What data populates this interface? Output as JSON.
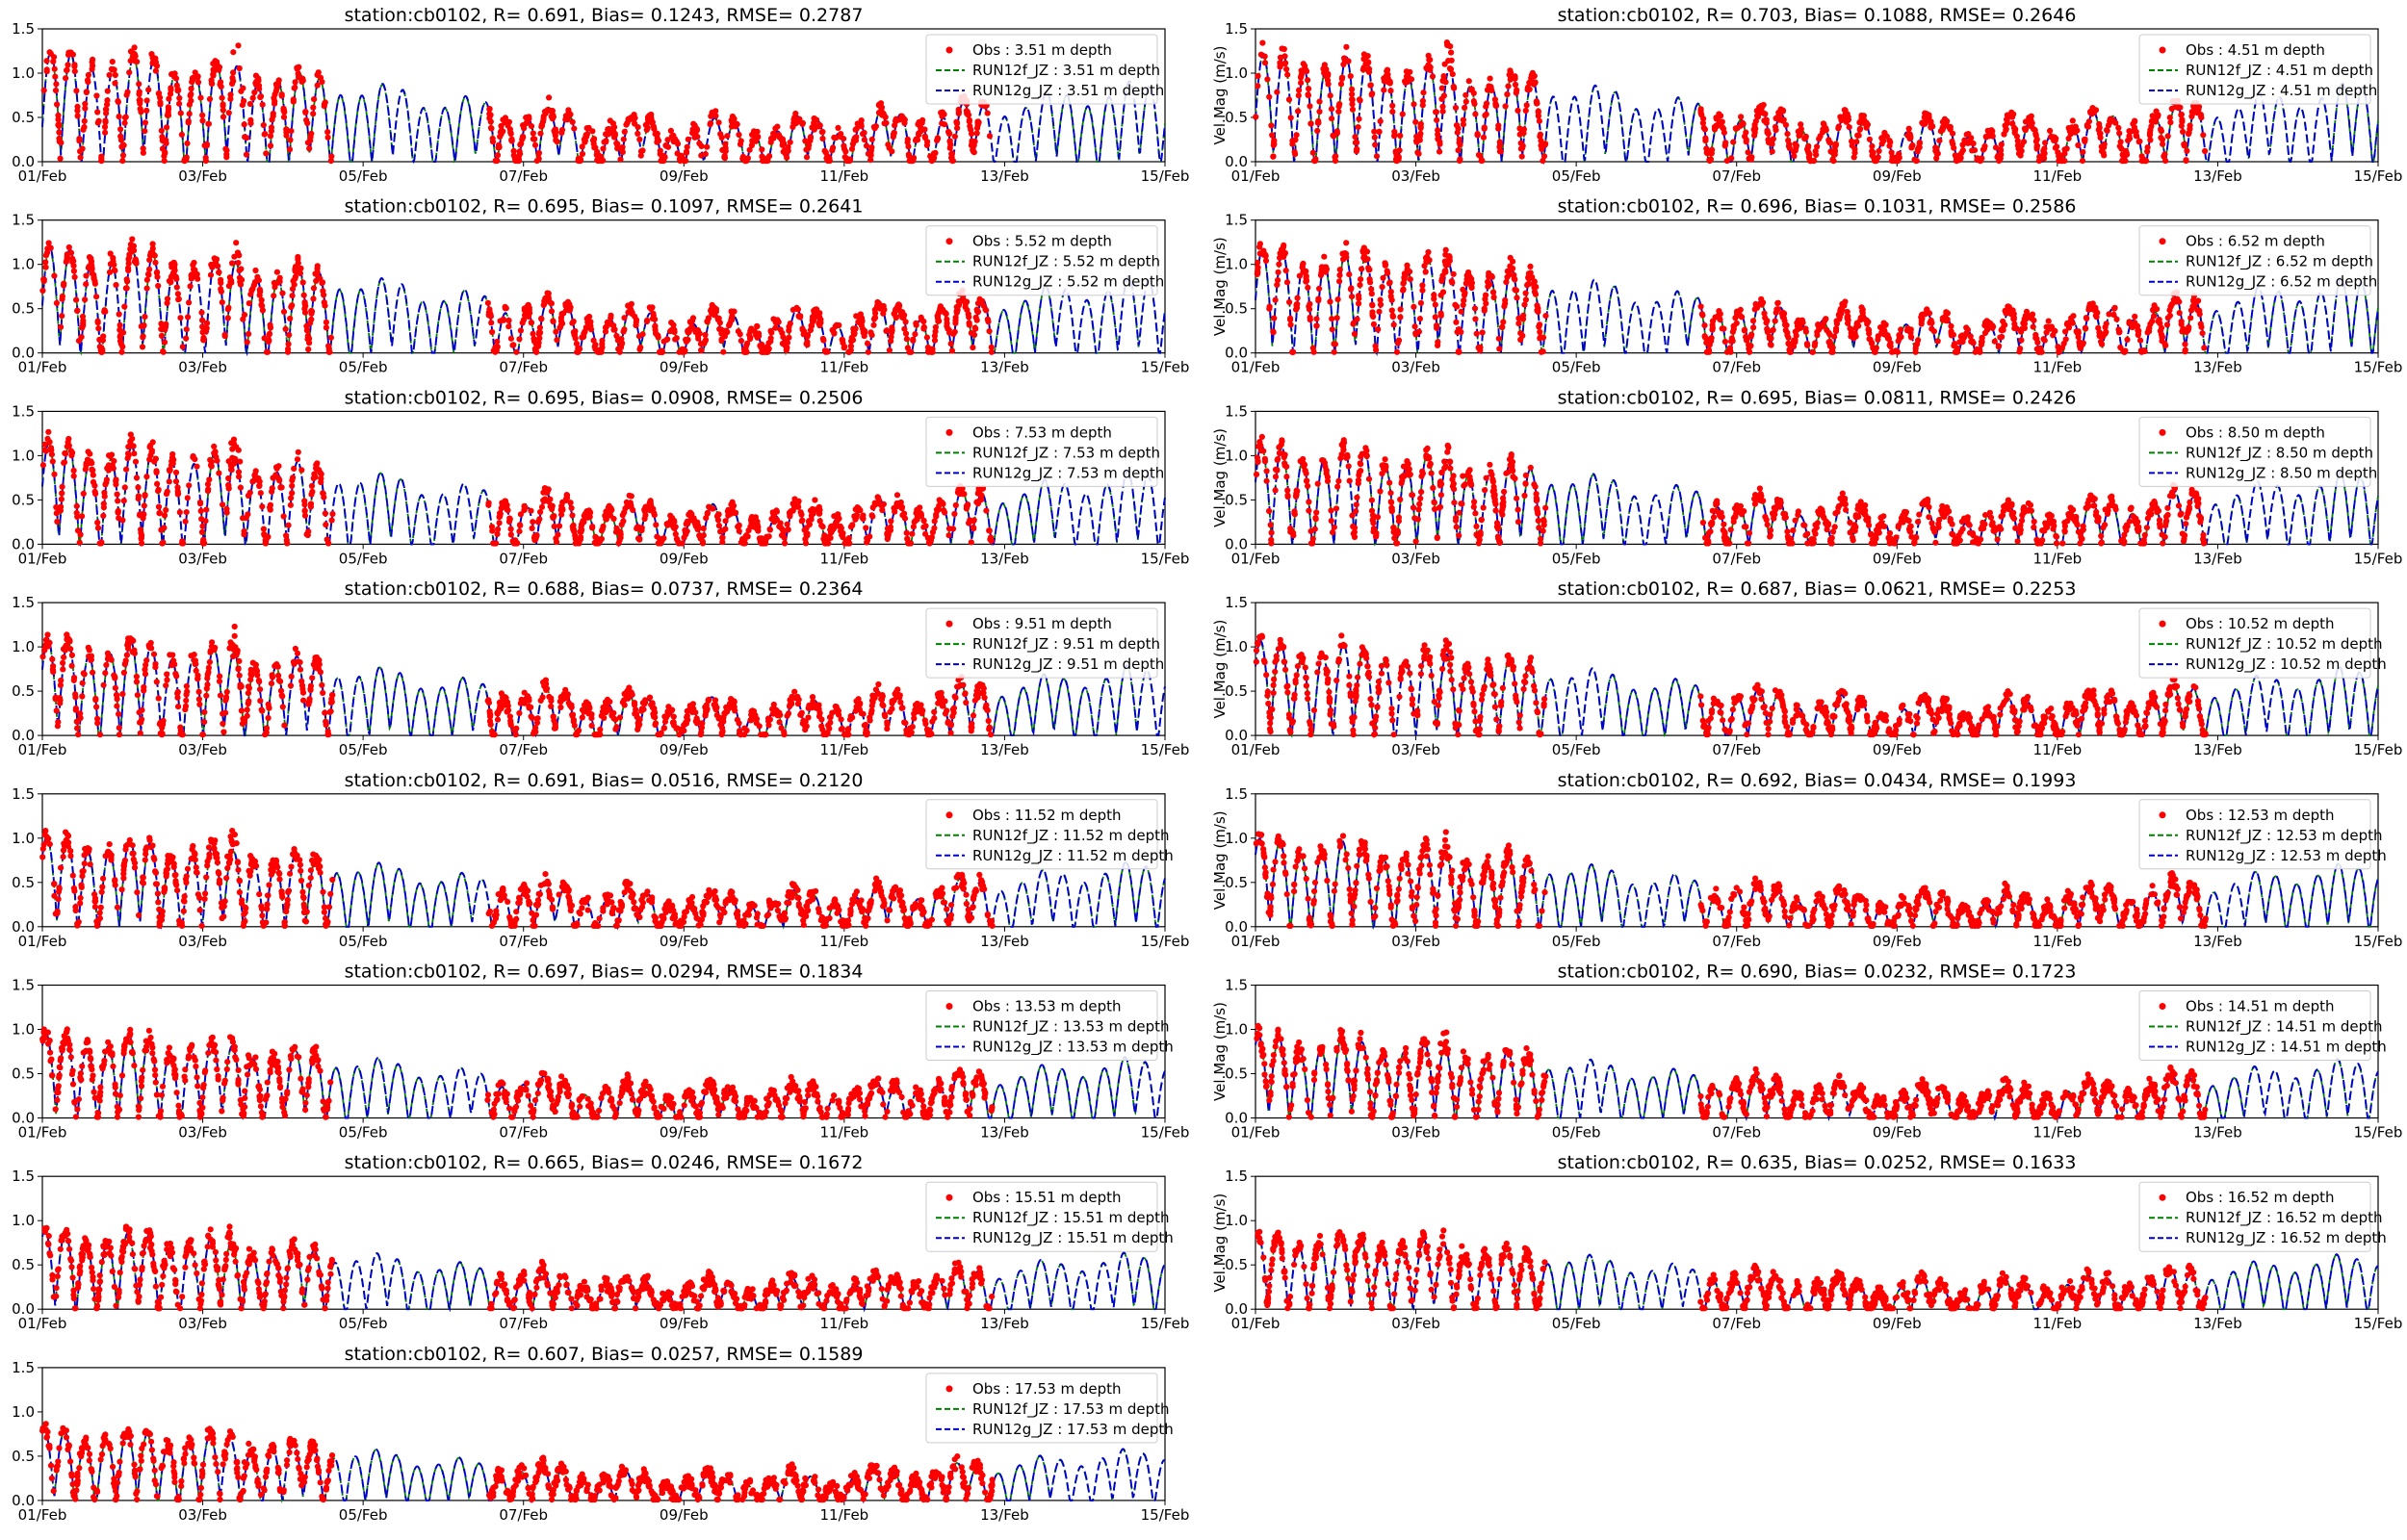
{
  "figure": {
    "background": "#ffffff"
  },
  "style": {
    "obs_color": "#ff0000",
    "run12f_color": "#008000",
    "run12g_color": "#0000cc",
    "run12g_dash": "dashed",
    "run12f_dash": "dashed"
  },
  "chart_data": [
    {
      "type": "line",
      "title": "station:cb0102, R= 0.691, Bias= 0.1243, RMSE= 0.2787",
      "ylabel": "",
      "xticks": [
        "01/Feb",
        "03/Feb",
        "05/Feb",
        "07/Feb",
        "09/Feb",
        "11/Feb",
        "13/Feb",
        "15/Feb"
      ],
      "yticks": [
        "0.0",
        "0.5",
        "1.0",
        "1.5"
      ],
      "ylim": [
        0,
        1.5
      ],
      "depth": 3.51,
      "amp": 1.0,
      "series": [
        {
          "name": "Obs : 3.51 m depth",
          "kind": "points"
        },
        {
          "name": "RUN12f_JZ : 3.51 m depth",
          "kind": "dashed"
        },
        {
          "name": "RUN12g_JZ : 3.51 m depth",
          "kind": "dashed"
        }
      ],
      "legend": "upper right"
    },
    {
      "type": "line",
      "title": "station:cb0102, R= 0.703, Bias= 0.1088, RMSE= 0.2646",
      "ylabel": "Vel.Mag (m/s)",
      "xticks": [
        "01/Feb",
        "03/Feb",
        "05/Feb",
        "07/Feb",
        "09/Feb",
        "11/Feb",
        "13/Feb",
        "15/Feb"
      ],
      "yticks": [
        "0.0",
        "0.5",
        "1.0",
        "1.5"
      ],
      "ylim": [
        0,
        1.5
      ],
      "depth": 4.51,
      "amp": 0.98,
      "series": [
        {
          "name": "Obs : 4.51 m depth",
          "kind": "points"
        },
        {
          "name": "RUN12f_JZ : 4.51 m depth",
          "kind": "dashed"
        },
        {
          "name": "RUN12g_JZ : 4.51 m depth",
          "kind": "dashed"
        }
      ],
      "legend": "upper right"
    },
    {
      "type": "line",
      "title": "station:cb0102, R= 0.695, Bias= 0.1097, RMSE= 0.2641",
      "ylabel": "",
      "xticks": [
        "01/Feb",
        "03/Feb",
        "05/Feb",
        "07/Feb",
        "09/Feb",
        "11/Feb",
        "13/Feb",
        "15/Feb"
      ],
      "yticks": [
        "0.0",
        "0.5",
        "1.0",
        "1.5"
      ],
      "ylim": [
        0,
        1.5
      ],
      "depth": 5.52,
      "amp": 0.96,
      "series": [
        {
          "name": "Obs : 5.52 m depth",
          "kind": "points"
        },
        {
          "name": "RUN12f_JZ : 5.52 m depth",
          "kind": "dashed"
        },
        {
          "name": "RUN12g_JZ : 5.52 m depth",
          "kind": "dashed"
        }
      ],
      "legend": "upper right"
    },
    {
      "type": "line",
      "title": "station:cb0102, R= 0.696, Bias= 0.1031, RMSE= 0.2586",
      "ylabel": "Vel.Mag (m/s)",
      "xticks": [
        "01/Feb",
        "03/Feb",
        "05/Feb",
        "07/Feb",
        "09/Feb",
        "11/Feb",
        "13/Feb",
        "15/Feb"
      ],
      "yticks": [
        "0.0",
        "0.5",
        "1.0",
        "1.5"
      ],
      "ylim": [
        0,
        1.5
      ],
      "depth": 6.52,
      "amp": 0.94,
      "series": [
        {
          "name": "Obs : 6.52 m depth",
          "kind": "points"
        },
        {
          "name": "RUN12f_JZ : 6.52 m depth",
          "kind": "dashed"
        },
        {
          "name": "RUN12g_JZ : 6.52 m depth",
          "kind": "dashed"
        }
      ],
      "legend": "upper right"
    },
    {
      "type": "line",
      "title": "station:cb0102, R= 0.695, Bias= 0.0908, RMSE= 0.2506",
      "ylabel": "",
      "xticks": [
        "01/Feb",
        "03/Feb",
        "05/Feb",
        "07/Feb",
        "09/Feb",
        "11/Feb",
        "13/Feb",
        "15/Feb"
      ],
      "yticks": [
        "0.0",
        "0.5",
        "1.0",
        "1.5"
      ],
      "ylim": [
        0,
        1.5
      ],
      "depth": 7.53,
      "amp": 0.92,
      "series": [
        {
          "name": "Obs : 7.53 m depth",
          "kind": "points"
        },
        {
          "name": "RUN12f_JZ : 7.53 m depth",
          "kind": "dashed"
        },
        {
          "name": "RUN12g_JZ : 7.53 m depth",
          "kind": "dashed"
        }
      ],
      "legend": "upper right"
    },
    {
      "type": "line",
      "title": "station:cb0102, R= 0.695, Bias= 0.0811, RMSE= 0.2426",
      "ylabel": "Vel.Mag (m/s)",
      "xticks": [
        "01/Feb",
        "03/Feb",
        "05/Feb",
        "07/Feb",
        "09/Feb",
        "11/Feb",
        "13/Feb",
        "15/Feb"
      ],
      "yticks": [
        "0.0",
        "0.5",
        "1.0",
        "1.5"
      ],
      "ylim": [
        0,
        1.5
      ],
      "depth": 8.5,
      "amp": 0.9,
      "series": [
        {
          "name": "Obs : 8.50 m depth",
          "kind": "points"
        },
        {
          "name": "RUN12f_JZ : 8.50 m depth",
          "kind": "dashed"
        },
        {
          "name": "RUN12g_JZ : 8.50 m depth",
          "kind": "dashed"
        }
      ],
      "legend": "upper right"
    },
    {
      "type": "line",
      "title": "station:cb0102, R= 0.688, Bias= 0.0737, RMSE= 0.2364",
      "ylabel": "",
      "xticks": [
        "01/Feb",
        "03/Feb",
        "05/Feb",
        "07/Feb",
        "09/Feb",
        "11/Feb",
        "13/Feb",
        "15/Feb"
      ],
      "yticks": [
        "0.0",
        "0.5",
        "1.0",
        "1.5"
      ],
      "ylim": [
        0,
        1.5
      ],
      "depth": 9.51,
      "amp": 0.88,
      "series": [
        {
          "name": "Obs : 9.51 m depth",
          "kind": "points"
        },
        {
          "name": "RUN12f_JZ : 9.51 m depth",
          "kind": "dashed"
        },
        {
          "name": "RUN12g_JZ : 9.51 m depth",
          "kind": "dashed"
        }
      ],
      "legend": "upper right"
    },
    {
      "type": "line",
      "title": "station:cb0102, R= 0.687, Bias= 0.0621, RMSE= 0.2253",
      "ylabel": "Vel.Mag (m/s)",
      "xticks": [
        "01/Feb",
        "03/Feb",
        "05/Feb",
        "07/Feb",
        "09/Feb",
        "11/Feb",
        "13/Feb",
        "15/Feb"
      ],
      "yticks": [
        "0.0",
        "0.5",
        "1.0",
        "1.5"
      ],
      "ylim": [
        0,
        1.5
      ],
      "depth": 10.52,
      "amp": 0.86,
      "series": [
        {
          "name": "Obs : 10.52 m depth",
          "kind": "points"
        },
        {
          "name": "RUN12f_JZ : 10.52 m depth",
          "kind": "dashed"
        },
        {
          "name": "RUN12g_JZ : 10.52 m depth",
          "kind": "dashed"
        }
      ],
      "legend": "upper right"
    },
    {
      "type": "line",
      "title": "station:cb0102, R= 0.691, Bias= 0.0516, RMSE= 0.2120",
      "ylabel": "",
      "xticks": [
        "01/Feb",
        "03/Feb",
        "05/Feb",
        "07/Feb",
        "09/Feb",
        "11/Feb",
        "13/Feb",
        "15/Feb"
      ],
      "yticks": [
        "0.0",
        "0.5",
        "1.0",
        "1.5"
      ],
      "ylim": [
        0,
        1.5
      ],
      "depth": 11.52,
      "amp": 0.82,
      "series": [
        {
          "name": "Obs : 11.52 m depth",
          "kind": "points"
        },
        {
          "name": "RUN12f_JZ : 11.52 m depth",
          "kind": "dashed"
        },
        {
          "name": "RUN12g_JZ : 11.52 m depth",
          "kind": "dashed"
        }
      ],
      "legend": "upper right"
    },
    {
      "type": "line",
      "title": "station:cb0102, R= 0.692, Bias= 0.0434, RMSE= 0.1993",
      "ylabel": "Vel.Mag  (m/s)",
      "xticks": [
        "01/Feb",
        "03/Feb",
        "05/Feb",
        "07/Feb",
        "09/Feb",
        "11/Feb",
        "13/Feb",
        "15/Feb"
      ],
      "yticks": [
        "0.0",
        "0.5",
        "1.0",
        "1.5"
      ],
      "ylim": [
        0,
        1.5
      ],
      "depth": 12.53,
      "amp": 0.8,
      "series": [
        {
          "name": "Obs : 12.53 m depth",
          "kind": "points"
        },
        {
          "name": "RUN12f_JZ : 12.53 m depth",
          "kind": "dashed"
        },
        {
          "name": "RUN12g_JZ : 12.53 m depth",
          "kind": "dashed"
        }
      ],
      "legend": "upper right"
    },
    {
      "type": "line",
      "title": "station:cb0102, R= 0.697, Bias= 0.0294, RMSE= 0.1834",
      "ylabel": "",
      "xticks": [
        "01/Feb",
        "03/Feb",
        "05/Feb",
        "07/Feb",
        "09/Feb",
        "11/Feb",
        "13/Feb",
        "15/Feb"
      ],
      "yticks": [
        "0.0",
        "0.5",
        "1.0",
        "1.5"
      ],
      "ylim": [
        0,
        1.5
      ],
      "depth": 13.53,
      "amp": 0.77,
      "series": [
        {
          "name": "Obs : 13.53 m depth",
          "kind": "points"
        },
        {
          "name": "RUN12f_JZ : 13.53 m depth",
          "kind": "dashed"
        },
        {
          "name": "RUN12g_JZ : 13.53 m depth",
          "kind": "dashed"
        }
      ],
      "legend": "upper right"
    },
    {
      "type": "line",
      "title": "station:cb0102, R= 0.690, Bias= 0.0232, RMSE= 0.1723",
      "ylabel": "Vel.Mag (m/s)",
      "xticks": [
        "01/Feb",
        "03/Feb",
        "05/Feb",
        "07/Feb",
        "09/Feb",
        "11/Feb",
        "13/Feb",
        "15/Feb"
      ],
      "yticks": [
        "0.0",
        "0.5",
        "1.0",
        "1.5"
      ],
      "ylim": [
        0,
        1.5
      ],
      "depth": 14.51,
      "amp": 0.75,
      "series": [
        {
          "name": "Obs : 14.51 m depth",
          "kind": "points"
        },
        {
          "name": "RUN12f_JZ : 14.51 m depth",
          "kind": "dashed"
        },
        {
          "name": "RUN12g_JZ : 14.51 m depth",
          "kind": "dashed"
        }
      ],
      "legend": "upper right"
    },
    {
      "type": "line",
      "title": "station:cb0102, R= 0.665, Bias= 0.0246, RMSE= 0.1672",
      "ylabel": "",
      "xticks": [
        "01/Feb",
        "03/Feb",
        "05/Feb",
        "07/Feb",
        "09/Feb",
        "11/Feb",
        "13/Feb",
        "15/Feb"
      ],
      "yticks": [
        "0.0",
        "0.5",
        "1.0",
        "1.5"
      ],
      "ylim": [
        0,
        1.5
      ],
      "depth": 15.51,
      "amp": 0.72,
      "series": [
        {
          "name": "Obs : 15.51 m depth",
          "kind": "points"
        },
        {
          "name": "RUN12f_JZ : 15.51 m depth",
          "kind": "dashed"
        },
        {
          "name": "RUN12g_JZ : 15.51 m depth",
          "kind": "dashed"
        }
      ],
      "legend": "upper right"
    },
    {
      "type": "line",
      "title": "station:cb0102, R= 0.635, Bias= 0.0252, RMSE= 0.1633",
      "ylabel": "Vel.Mag (m/s)",
      "xticks": [
        "01/Feb",
        "03/Feb",
        "05/Feb",
        "07/Feb",
        "09/Feb",
        "11/Feb",
        "13/Feb",
        "15/Feb"
      ],
      "yticks": [
        "0.0",
        "0.5",
        "1.0",
        "1.5"
      ],
      "ylim": [
        0,
        1.5
      ],
      "depth": 16.52,
      "amp": 0.7,
      "series": [
        {
          "name": "Obs : 16.52 m depth",
          "kind": "points"
        },
        {
          "name": "RUN12f_JZ : 16.52 m depth",
          "kind": "dashed"
        },
        {
          "name": "RUN12g_JZ : 16.52 m depth",
          "kind": "dashed"
        }
      ],
      "legend": "upper right"
    },
    {
      "type": "line",
      "title": "station:cb0102, R= 0.607, Bias= 0.0257, RMSE= 0.1589",
      "ylabel": "",
      "xticks": [
        "01/Feb",
        "03/Feb",
        "05/Feb",
        "07/Feb",
        "09/Feb",
        "11/Feb",
        "13/Feb",
        "15/Feb"
      ],
      "yticks": [
        "0.0",
        "0.5",
        "1.0",
        "1.5"
      ],
      "ylim": [
        0,
        1.5
      ],
      "depth": 17.53,
      "amp": 0.66,
      "series": [
        {
          "name": "Obs : 17.53 m depth",
          "kind": "points"
        },
        {
          "name": "RUN12f_JZ : 17.53 m depth",
          "kind": "dashed"
        },
        {
          "name": "RUN12g_JZ : 17.53 m depth",
          "kind": "dashed"
        }
      ],
      "legend": "upper right"
    }
  ]
}
